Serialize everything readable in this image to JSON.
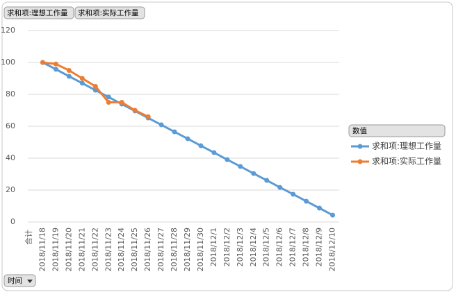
{
  "chart_data": {
    "type": "line",
    "field_buttons": [
      "求和项:理想工作量",
      "求和项:实际工作量"
    ],
    "axis_field_button": "时间",
    "legend_title": "数值",
    "x_label": "合计",
    "categories": [
      "2018/11/18",
      "2018/11/19",
      "2018/11/20",
      "2018/11/21",
      "2018/11/22",
      "2018/11/23",
      "2018/11/24",
      "2018/11/25",
      "2018/11/26",
      "2018/11/27",
      "2018/11/28",
      "2018/11/29",
      "2018/11/30",
      "2018/12/1",
      "2018/12/2",
      "2018/12/3",
      "2018/12/4",
      "2018/12/5",
      "2018/12/6",
      "2018/12/7",
      "2018/12/8",
      "2018/12/9",
      "2018/12/10"
    ],
    "series": [
      {
        "name": "求和项:理想工作量",
        "color": "#5b9bd5",
        "values": [
          100,
          95.7,
          91.3,
          87,
          82.6,
          78.3,
          73.9,
          69.6,
          65.2,
          60.9,
          56.5,
          52.2,
          47.8,
          43.5,
          39.1,
          34.8,
          30.4,
          26.1,
          21.7,
          17.4,
          13,
          8.7,
          4.3
        ]
      },
      {
        "name": "求和项:实际工作量",
        "color": "#ed7d31",
        "values": [
          100,
          99,
          95,
          90,
          85,
          75,
          75,
          70,
          66,
          null,
          null,
          null,
          null,
          null,
          null,
          null,
          null,
          null,
          null,
          null,
          null,
          null,
          null
        ]
      }
    ],
    "ylim": [
      0,
      120
    ],
    "yticks": [
      0,
      20,
      40,
      60,
      80,
      100,
      120
    ],
    "grid": true
  }
}
